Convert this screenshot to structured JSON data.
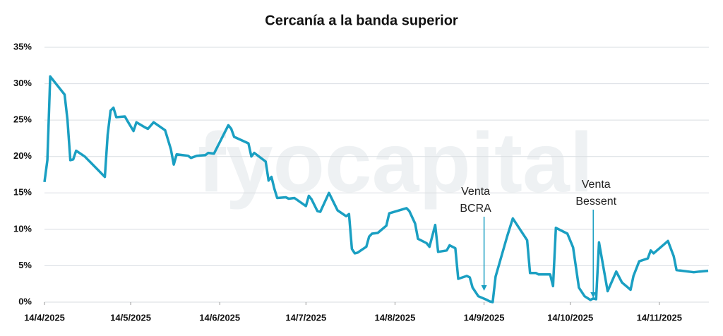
{
  "chart_data": {
    "type": "line",
    "title": "Cercanía a la banda superior",
    "watermark": "fyocapital",
    "x": [
      "2025-04-14",
      "2025-04-15",
      "2025-04-16",
      "2025-04-21",
      "2025-04-22",
      "2025-04-23",
      "2025-04-24",
      "2025-04-25",
      "2025-04-28",
      "2025-05-05",
      "2025-05-06",
      "2025-05-07",
      "2025-05-08",
      "2025-05-09",
      "2025-05-12",
      "2025-05-13",
      "2025-05-15",
      "2025-05-16",
      "2025-05-19",
      "2025-05-20",
      "2025-05-22",
      "2025-05-26",
      "2025-05-28",
      "2025-05-29",
      "2025-05-30",
      "2025-06-03",
      "2025-06-04",
      "2025-06-06",
      "2025-06-09",
      "2025-06-10",
      "2025-06-12",
      "2025-06-17",
      "2025-06-18",
      "2025-06-19",
      "2025-06-24",
      "2025-06-25",
      "2025-06-26",
      "2025-06-30",
      "2025-07-01",
      "2025-07-02",
      "2025-07-03",
      "2025-07-04",
      "2025-07-07",
      "2025-07-08",
      "2025-07-10",
      "2025-07-14",
      "2025-07-15",
      "2025-07-16",
      "2025-07-18",
      "2025-07-19",
      "2025-07-22",
      "2025-07-25",
      "2025-07-28",
      "2025-07-29",
      "2025-07-30",
      "2025-07-31",
      "2025-08-01",
      "2025-08-04",
      "2025-08-05",
      "2025-08-06",
      "2025-08-08",
      "2025-08-11",
      "2025-08-12",
      "2025-08-18",
      "2025-08-19",
      "2025-08-21",
      "2025-08-22",
      "2025-08-25",
      "2025-08-26",
      "2025-08-28",
      "2025-08-29",
      "2025-09-01",
      "2025-09-02",
      "2025-09-04",
      "2025-09-05",
      "2025-09-08",
      "2025-09-09",
      "2025-09-10",
      "2025-09-12",
      "2025-09-15",
      "2025-09-16",
      "2025-09-17",
      "2025-09-18",
      "2025-09-22",
      "2025-09-24",
      "2025-09-29",
      "2025-09-30",
      "2025-10-02",
      "2025-10-03",
      "2025-10-07",
      "2025-10-08",
      "2025-10-09",
      "2025-10-13",
      "2025-10-15",
      "2025-10-17",
      "2025-10-19",
      "2025-10-21",
      "2025-10-22",
      "2025-10-23",
      "2025-10-24",
      "2025-10-27",
      "2025-10-30",
      "2025-11-01",
      "2025-11-04",
      "2025-11-05",
      "2025-11-07",
      "2025-11-10",
      "2025-11-11",
      "2025-11-12",
      "2025-11-17",
      "2025-11-19",
      "2025-11-20",
      "2025-11-26",
      "2025-11-28",
      "2025-12-01"
    ],
    "series": [
      {
        "color": "#1a9fc2",
        "values": [
          16.5,
          19.5,
          31,
          28.5,
          25,
          19.5,
          19.6,
          20.8,
          20,
          17.2,
          23,
          26.3,
          26.7,
          25.4,
          25.5,
          24.8,
          23.5,
          24.7,
          24,
          23.8,
          24.7,
          23.6,
          21,
          18.9,
          20.3,
          20.1,
          19.8,
          20.1,
          20.2,
          20.5,
          20.4,
          24.3,
          23.8,
          22.7,
          21.8,
          20,
          20.5,
          19.3,
          16.7,
          17.2,
          15.6,
          14.3,
          14.4,
          14.2,
          14.3,
          13.2,
          14.6,
          14.1,
          12.5,
          12.4,
          15,
          12.6,
          11.8,
          12.1,
          7.3,
          6.7,
          6.8,
          7.6,
          9,
          9.4,
          9.5,
          10.5,
          12.2,
          12.9,
          12.5,
          10.8,
          8.7,
          8.1,
          7.6,
          10.6,
          6.9,
          7.1,
          7.8,
          7.4,
          3.2,
          3.6,
          3.4,
          2,
          0.8,
          0.3,
          0.1,
          0,
          3.5,
          9,
          11.5,
          8.5,
          4,
          4,
          3.8,
          3.8,
          2.2,
          10.2,
          9.4,
          7.5,
          2,
          0.8,
          0.3,
          0.5,
          0.4,
          8.2,
          1.5,
          4.2,
          2.7,
          1.7,
          3.6,
          5.6,
          6,
          7.1,
          6.7,
          8.4,
          6.3,
          4.4,
          4.1,
          4.2,
          4.3
        ]
      }
    ],
    "xlim": [
      "2025-04-14",
      "2025-12-01"
    ],
    "xticks": [
      {
        "value": "2025-04-14",
        "label": "14/4/2025"
      },
      {
        "value": "2025-05-14",
        "label": "14/5/2025"
      },
      {
        "value": "2025-06-14",
        "label": "14/6/2025"
      },
      {
        "value": "2025-07-14",
        "label": "14/7/2025"
      },
      {
        "value": "2025-08-14",
        "label": "14/8/2025"
      },
      {
        "value": "2025-09-14",
        "label": "14/9/2025"
      },
      {
        "value": "2025-10-14",
        "label": "14/10/2025"
      },
      {
        "value": "2025-11-14",
        "label": "14/11/2025"
      }
    ],
    "ylim": [
      0,
      35
    ],
    "yticks": [
      {
        "value": 0,
        "label": "0%"
      },
      {
        "value": 5,
        "label": "5%"
      },
      {
        "value": 10,
        "label": "10%"
      },
      {
        "value": 15,
        "label": "15%"
      },
      {
        "value": 20,
        "label": "20%"
      },
      {
        "value": 25,
        "label": "25%"
      },
      {
        "value": 30,
        "label": "30%"
      },
      {
        "value": 35,
        "label": "35%"
      }
    ],
    "grid": true,
    "annotations": [
      {
        "text": [
          "Venta",
          "BCRA"
        ],
        "x": "2025-09-14"
      },
      {
        "text": [
          "Venta",
          "Bessent"
        ],
        "x": "2025-10-22"
      }
    ]
  }
}
